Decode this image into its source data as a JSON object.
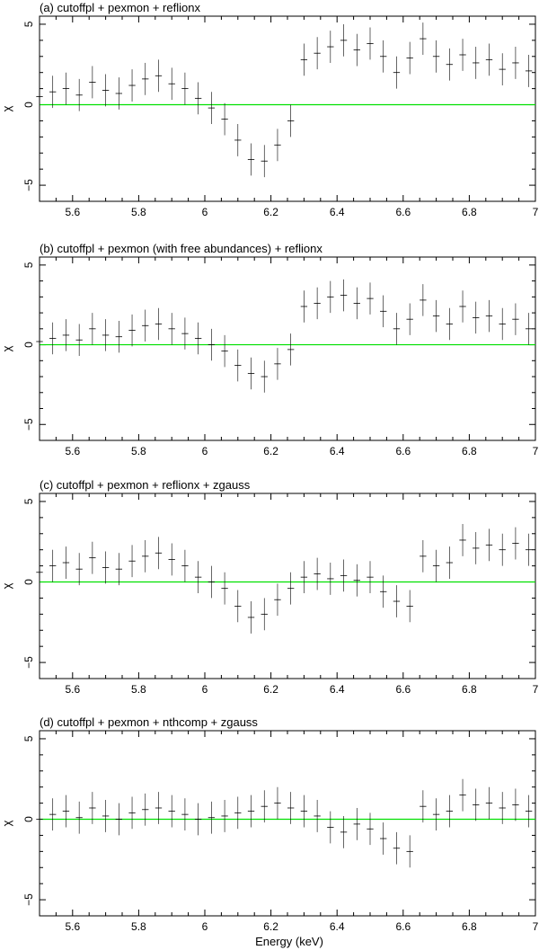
{
  "figure": {
    "xlabel": "Energy (keV)"
  },
  "chart_data": [
    {
      "type": "scatter",
      "title": "(a) cutoffpl + pexmon + reflionx",
      "xlabel": "",
      "ylabel": "χ",
      "xlim": [
        5.5,
        7
      ],
      "ylim": [
        -6,
        5.5
      ],
      "xticks": [
        "5.6",
        "5.8",
        "6",
        "6.2",
        "6.4",
        "6.6",
        "6.8",
        "7"
      ],
      "yticks": [
        "−5",
        "0",
        "5"
      ],
      "reference_line": 0,
      "grid": false,
      "colors": {
        "reference_line": "#00e000",
        "points": "#000000"
      },
      "series": [
        {
          "error": 1,
          "points": [
            [
              5.5,
              0.5
            ],
            [
              5.54,
              0.8
            ],
            [
              5.58,
              1.0
            ],
            [
              5.62,
              0.6
            ],
            [
              5.66,
              1.4
            ],
            [
              5.7,
              0.9
            ],
            [
              5.74,
              0.7
            ],
            [
              5.78,
              1.2
            ],
            [
              5.82,
              1.6
            ],
            [
              5.86,
              1.8
            ],
            [
              5.9,
              1.3
            ],
            [
              5.94,
              1.0
            ],
            [
              5.98,
              0.4
            ],
            [
              6.02,
              -0.2
            ],
            [
              6.06,
              -0.9
            ],
            [
              6.1,
              -2.2
            ],
            [
              6.14,
              -3.4
            ],
            [
              6.18,
              -3.5
            ],
            [
              6.22,
              -2.5
            ],
            [
              6.26,
              -1.0
            ],
            [
              6.3,
              2.8
            ],
            [
              6.34,
              3.2
            ],
            [
              6.38,
              3.6
            ],
            [
              6.42,
              4.0
            ],
            [
              6.46,
              3.4
            ],
            [
              6.5,
              3.8
            ],
            [
              6.54,
              3.0
            ],
            [
              6.58,
              2.0
            ],
            [
              6.62,
              2.9
            ],
            [
              6.66,
              4.1
            ],
            [
              6.7,
              3.0
            ],
            [
              6.74,
              2.5
            ],
            [
              6.78,
              3.1
            ],
            [
              6.82,
              2.6
            ],
            [
              6.86,
              2.8
            ],
            [
              6.9,
              2.2
            ],
            [
              6.94,
              2.6
            ],
            [
              6.98,
              2.1
            ]
          ]
        }
      ]
    },
    {
      "type": "scatter",
      "title": "(b) cutoffpl + pexmon (with free abundances) + reflionx",
      "xlabel": "",
      "ylabel": "χ",
      "xlim": [
        5.5,
        7
      ],
      "ylim": [
        -6,
        5.5
      ],
      "xticks": [
        "5.6",
        "5.8",
        "6",
        "6.2",
        "6.4",
        "6.6",
        "6.8",
        "7"
      ],
      "yticks": [
        "−5",
        "0",
        "5"
      ],
      "reference_line": 0,
      "grid": false,
      "colors": {
        "reference_line": "#00e000",
        "points": "#000000"
      },
      "series": [
        {
          "error": 1,
          "points": [
            [
              5.5,
              0.2
            ],
            [
              5.54,
              0.4
            ],
            [
              5.58,
              0.6
            ],
            [
              5.62,
              0.3
            ],
            [
              5.66,
              1.0
            ],
            [
              5.7,
              0.6
            ],
            [
              5.74,
              0.5
            ],
            [
              5.78,
              0.9
            ],
            [
              5.82,
              1.2
            ],
            [
              5.86,
              1.3
            ],
            [
              5.9,
              1.0
            ],
            [
              5.94,
              0.7
            ],
            [
              5.98,
              0.4
            ],
            [
              6.02,
              0.0
            ],
            [
              6.06,
              -0.4
            ],
            [
              6.1,
              -1.3
            ],
            [
              6.14,
              -1.8
            ],
            [
              6.18,
              -2.0
            ],
            [
              6.22,
              -1.2
            ],
            [
              6.26,
              -0.3
            ],
            [
              6.3,
              2.4
            ],
            [
              6.34,
              2.6
            ],
            [
              6.38,
              3.0
            ],
            [
              6.42,
              3.1
            ],
            [
              6.46,
              2.6
            ],
            [
              6.5,
              2.9
            ],
            [
              6.54,
              2.1
            ],
            [
              6.58,
              1.0
            ],
            [
              6.62,
              1.6
            ],
            [
              6.66,
              2.8
            ],
            [
              6.7,
              1.8
            ],
            [
              6.74,
              1.3
            ],
            [
              6.78,
              2.4
            ],
            [
              6.82,
              1.7
            ],
            [
              6.86,
              1.8
            ],
            [
              6.9,
              1.3
            ],
            [
              6.94,
              1.6
            ],
            [
              6.98,
              1.0
            ]
          ]
        }
      ]
    },
    {
      "type": "scatter",
      "title": "(c) cutoffpl + pexmon + reflionx + zgauss",
      "xlabel": "",
      "ylabel": "χ",
      "xlim": [
        5.5,
        7
      ],
      "ylim": [
        -6,
        5.5
      ],
      "xticks": [
        "5.6",
        "5.8",
        "6",
        "6.2",
        "6.4",
        "6.6",
        "6.8",
        "7"
      ],
      "yticks": [
        "−5",
        "0",
        "5"
      ],
      "reference_line": 0,
      "grid": false,
      "colors": {
        "reference_line": "#00e000",
        "points": "#000000"
      },
      "series": [
        {
          "error": 1,
          "points": [
            [
              5.5,
              0.6
            ],
            [
              5.54,
              1.0
            ],
            [
              5.58,
              1.2
            ],
            [
              5.62,
              0.8
            ],
            [
              5.66,
              1.5
            ],
            [
              5.7,
              0.9
            ],
            [
              5.74,
              0.8
            ],
            [
              5.78,
              1.3
            ],
            [
              5.82,
              1.6
            ],
            [
              5.86,
              1.8
            ],
            [
              5.9,
              1.4
            ],
            [
              5.94,
              1.0
            ],
            [
              5.98,
              0.3
            ],
            [
              6.02,
              0.0
            ],
            [
              6.06,
              -0.4
            ],
            [
              6.1,
              -1.5
            ],
            [
              6.14,
              -2.2
            ],
            [
              6.18,
              -2.0
            ],
            [
              6.22,
              -1.1
            ],
            [
              6.26,
              -0.4
            ],
            [
              6.3,
              0.3
            ],
            [
              6.34,
              0.5
            ],
            [
              6.38,
              0.2
            ],
            [
              6.42,
              0.4
            ],
            [
              6.46,
              0.1
            ],
            [
              6.5,
              0.3
            ],
            [
              6.54,
              -0.6
            ],
            [
              6.58,
              -1.2
            ],
            [
              6.62,
              -1.5
            ],
            [
              6.66,
              1.6
            ],
            [
              6.7,
              1.0
            ],
            [
              6.74,
              1.2
            ],
            [
              6.78,
              2.6
            ],
            [
              6.82,
              2.1
            ],
            [
              6.86,
              2.3
            ],
            [
              6.9,
              2.0
            ],
            [
              6.94,
              2.4
            ],
            [
              6.98,
              2.0
            ]
          ]
        }
      ]
    },
    {
      "type": "scatter",
      "title": "(d) cutoffpl + pexmon + nthcomp + zgauss",
      "xlabel": "Energy (keV)",
      "ylabel": "χ",
      "xlim": [
        5.5,
        7
      ],
      "ylim": [
        -6,
        5.5
      ],
      "xticks": [
        "5.6",
        "5.8",
        "6",
        "6.2",
        "6.4",
        "6.6",
        "6.8",
        "7"
      ],
      "yticks": [
        "−5",
        "0",
        "5"
      ],
      "reference_line": 0,
      "grid": false,
      "colors": {
        "reference_line": "#00e000",
        "points": "#000000"
      },
      "series": [
        {
          "error": 1,
          "points": [
            [
              5.5,
              0.0
            ],
            [
              5.54,
              0.3
            ],
            [
              5.58,
              0.5
            ],
            [
              5.62,
              0.1
            ],
            [
              5.66,
              0.7
            ],
            [
              5.7,
              0.2
            ],
            [
              5.74,
              0.0
            ],
            [
              5.78,
              0.4
            ],
            [
              5.82,
              0.6
            ],
            [
              5.86,
              0.7
            ],
            [
              5.9,
              0.5
            ],
            [
              5.94,
              0.3
            ],
            [
              5.98,
              0.0
            ],
            [
              6.02,
              0.1
            ],
            [
              6.06,
              0.2
            ],
            [
              6.1,
              0.4
            ],
            [
              6.14,
              0.5
            ],
            [
              6.18,
              0.8
            ],
            [
              6.22,
              1.0
            ],
            [
              6.26,
              0.7
            ],
            [
              6.3,
              0.5
            ],
            [
              6.34,
              0.2
            ],
            [
              6.38,
              -0.5
            ],
            [
              6.42,
              -0.8
            ],
            [
              6.46,
              -0.3
            ],
            [
              6.5,
              -0.6
            ],
            [
              6.54,
              -1.2
            ],
            [
              6.58,
              -1.8
            ],
            [
              6.62,
              -2.0
            ],
            [
              6.66,
              0.8
            ],
            [
              6.7,
              0.3
            ],
            [
              6.74,
              0.5
            ],
            [
              6.78,
              1.5
            ],
            [
              6.82,
              0.9
            ],
            [
              6.86,
              1.0
            ],
            [
              6.9,
              0.7
            ],
            [
              6.94,
              0.9
            ],
            [
              6.98,
              0.5
            ]
          ]
        }
      ]
    }
  ]
}
